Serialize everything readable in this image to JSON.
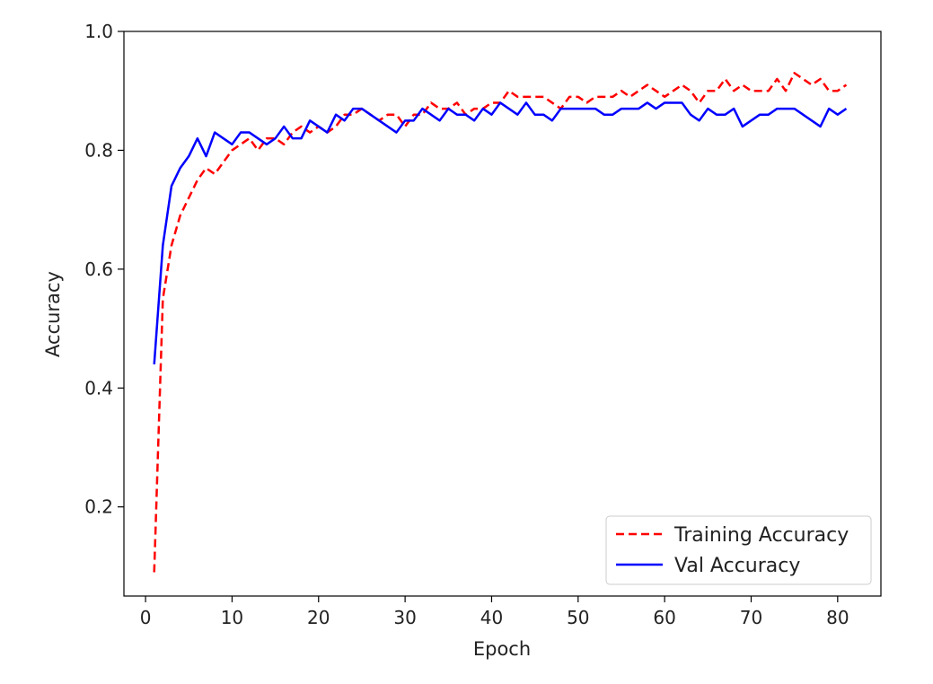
{
  "chart_data": {
    "type": "line",
    "xlabel": "Epoch",
    "ylabel": "Accuracy",
    "xlim": [
      -2.5,
      85.0
    ],
    "ylim": [
      0.05,
      1.0
    ],
    "xticks": [
      0,
      10,
      20,
      30,
      40,
      50,
      60,
      70,
      80
    ],
    "yticks": [
      0.2,
      0.4,
      0.6,
      0.8,
      1.0
    ],
    "xtick_labels": [
      "0",
      "10",
      "20",
      "30",
      "40",
      "50",
      "60",
      "70",
      "80"
    ],
    "ytick_labels": [
      "0.2",
      "0.4",
      "0.6",
      "0.8",
      "1.0"
    ],
    "grid": false,
    "legend_position": "lower-right",
    "x": [
      1,
      2,
      3,
      4,
      5,
      6,
      7,
      8,
      9,
      10,
      11,
      12,
      13,
      14,
      15,
      16,
      17,
      18,
      19,
      20,
      21,
      22,
      23,
      24,
      25,
      26,
      27,
      28,
      29,
      30,
      31,
      32,
      33,
      34,
      35,
      36,
      37,
      38,
      39,
      40,
      41,
      42,
      43,
      44,
      45,
      46,
      47,
      48,
      49,
      50,
      51,
      52,
      53,
      54,
      55,
      56,
      57,
      58,
      59,
      60,
      61,
      62,
      63,
      64,
      65,
      66,
      67,
      68,
      69,
      70,
      71,
      72,
      73,
      74,
      75,
      76,
      77,
      78,
      79,
      80,
      81
    ],
    "series": [
      {
        "name": "Training Accuracy",
        "color": "#ff0000",
        "style": "dashed",
        "values": [
          0.09,
          0.55,
          0.64,
          0.69,
          0.72,
          0.75,
          0.77,
          0.76,
          0.78,
          0.8,
          0.81,
          0.82,
          0.8,
          0.82,
          0.82,
          0.81,
          0.83,
          0.84,
          0.83,
          0.84,
          0.83,
          0.84,
          0.86,
          0.86,
          0.87,
          0.86,
          0.85,
          0.86,
          0.86,
          0.84,
          0.86,
          0.86,
          0.88,
          0.87,
          0.87,
          0.88,
          0.86,
          0.87,
          0.87,
          0.88,
          0.88,
          0.9,
          0.89,
          0.89,
          0.89,
          0.89,
          0.88,
          0.87,
          0.89,
          0.89,
          0.88,
          0.89,
          0.89,
          0.89,
          0.9,
          0.89,
          0.9,
          0.91,
          0.9,
          0.89,
          0.9,
          0.91,
          0.9,
          0.88,
          0.9,
          0.9,
          0.92,
          0.9,
          0.91,
          0.9,
          0.9,
          0.9,
          0.92,
          0.9,
          0.93,
          0.92,
          0.91,
          0.92,
          0.9,
          0.9,
          0.91
        ]
      },
      {
        "name": "Val Accuracy",
        "color": "#0000ff",
        "style": "solid",
        "values": [
          0.44,
          0.64,
          0.74,
          0.77,
          0.79,
          0.82,
          0.79,
          0.83,
          0.82,
          0.81,
          0.83,
          0.83,
          0.82,
          0.81,
          0.82,
          0.84,
          0.82,
          0.82,
          0.85,
          0.84,
          0.83,
          0.86,
          0.85,
          0.87,
          0.87,
          0.86,
          0.85,
          0.84,
          0.83,
          0.85,
          0.85,
          0.87,
          0.86,
          0.85,
          0.87,
          0.86,
          0.86,
          0.85,
          0.87,
          0.86,
          0.88,
          0.87,
          0.86,
          0.88,
          0.86,
          0.86,
          0.85,
          0.87,
          0.87,
          0.87,
          0.87,
          0.87,
          0.86,
          0.86,
          0.87,
          0.87,
          0.87,
          0.88,
          0.87,
          0.88,
          0.88,
          0.88,
          0.86,
          0.85,
          0.87,
          0.86,
          0.86,
          0.87,
          0.84,
          0.85,
          0.86,
          0.86,
          0.87,
          0.87,
          0.87,
          0.86,
          0.85,
          0.84,
          0.87,
          0.86,
          0.87
        ]
      }
    ]
  }
}
